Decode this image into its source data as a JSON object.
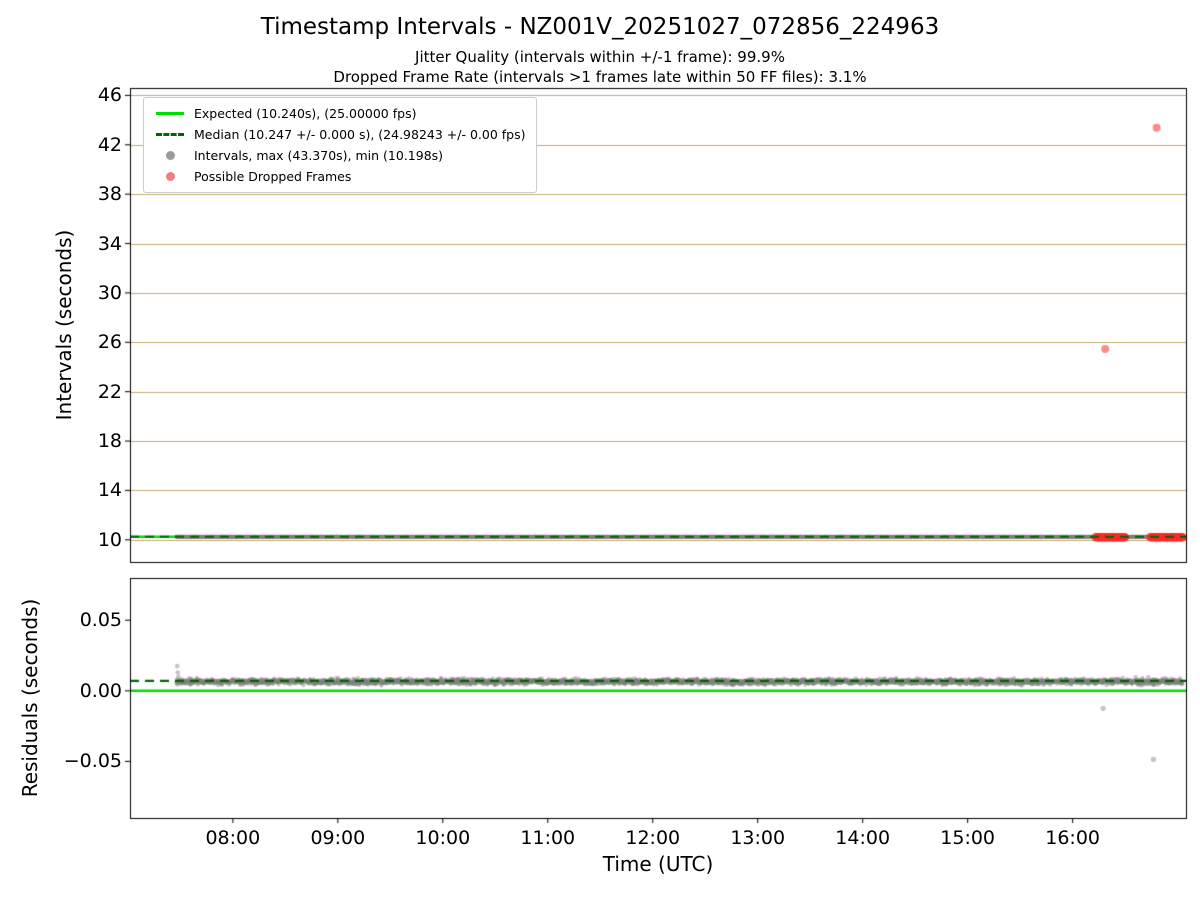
{
  "figure": {
    "title": "Timestamp Intervals - NZ001V_20251027_072856_224963",
    "subtitle_line1": "Jitter Quality (intervals within +/-1 frame): 99.9%",
    "subtitle_line2": "Dropped Frame Rate (intervals >1 frames late within 50 FF files): 3.1%",
    "xlabel": "Time (UTC)",
    "background_color": "#ffffff"
  },
  "legend": {
    "entries": [
      {
        "type": "line",
        "dash": false,
        "color": "#00dd00",
        "label": "Expected (10.240s), (25.00000 fps)"
      },
      {
        "type": "line",
        "dash": true,
        "color": "#006400",
        "label": "Median (10.247 +/- 0.000 s), (24.98243 +/- 0.00 fps)"
      },
      {
        "type": "dot",
        "color": "#9b9b9b",
        "label": "Intervals, max (43.370s), min (10.198s)"
      },
      {
        "type": "dot",
        "color": "#f08080",
        "label": "Possible Dropped Frames"
      }
    ]
  },
  "chart_data": [
    {
      "type": "scatter",
      "name": "intervals",
      "ylabel": "Intervals (seconds)",
      "xlim": [
        7.02,
        17.08
      ],
      "ylim": [
        8.2,
        46.6
      ],
      "yticks": [
        10,
        14,
        18,
        22,
        26,
        30,
        34,
        38,
        42,
        46
      ],
      "grid": {
        "axis": "y",
        "color": "#c6ac6f"
      },
      "expected_line": {
        "y": 10.24,
        "color": "#00dd00",
        "seconds": 10.24,
        "fps": 25.0
      },
      "median_line": {
        "y": 10.247,
        "color": "#006400",
        "dashed": true,
        "seconds": 10.247,
        "seconds_err": 0.0,
        "fps": 24.98243,
        "fps_err": 0.0
      },
      "stats": {
        "max_s": 43.37,
        "min_s": 10.198,
        "jitter_quality_pct": 99.9,
        "dropped_frame_rate_pct": 3.1,
        "ff_files": 50
      },
      "band": {
        "series": "intervals",
        "x_start": 7.46,
        "x_end": 17.05,
        "y_center": 10.247,
        "y_sigma": 0.02,
        "interval_s": 10.247,
        "color": "#7f7f7f",
        "alpha": 0.5,
        "radius": 1.9
      },
      "dropped_runs": [
        {
          "x_start": 16.22,
          "x_end": 16.5,
          "y": 10.21
        },
        {
          "x_start": 16.74,
          "x_end": 17.05,
          "y": 10.21
        }
      ],
      "dropped_outliers": [
        {
          "x": 16.31,
          "y": 25.45
        },
        {
          "x": 16.8,
          "y": 43.37
        }
      ],
      "dropped_style": {
        "color": "#ff2a2a",
        "alpha": 0.55,
        "radius": 4.0
      }
    },
    {
      "type": "scatter",
      "name": "residuals",
      "ylabel": "Residuals (seconds)",
      "xlim": [
        7.02,
        17.08
      ],
      "ylim": [
        -0.0901,
        0.0799
      ],
      "yticks": [
        -0.05,
        0.0,
        0.05
      ],
      "ytick_labels": [
        "−0.05",
        "0.00",
        "0.05"
      ],
      "xticks": [
        8,
        9,
        10,
        11,
        12,
        13,
        14,
        15,
        16
      ],
      "xtick_labels": [
        "08:00",
        "09:00",
        "10:00",
        "11:00",
        "12:00",
        "13:00",
        "14:00",
        "15:00",
        "16:00"
      ],
      "expected_line": {
        "y": 0.0,
        "color": "#00dd00"
      },
      "median_line": {
        "y": 0.007,
        "color": "#006400",
        "dashed": true
      },
      "band": {
        "series": "residuals",
        "x_start": 7.46,
        "x_end": 17.05,
        "y_center": 0.0065,
        "y_sigma": 0.003,
        "interval_s": 10.247,
        "color": "#7f7f7f",
        "alpha": 0.45,
        "radius": 2.0
      },
      "extra_points": [
        {
          "x": 7.47,
          "y": 0.0175
        },
        {
          "x": 7.475,
          "y": 0.013
        },
        {
          "x": 7.48,
          "y": 0.01
        },
        {
          "x": 7.47,
          "y": 0.0045
        },
        {
          "x": 7.5,
          "y": 0.005
        },
        {
          "x": 16.6,
          "y": 0.0095
        },
        {
          "x": 16.66,
          "y": 0.004
        },
        {
          "x": 16.72,
          "y": 0.0095
        },
        {
          "x": 16.78,
          "y": 0.0045
        }
      ],
      "outliers": [
        {
          "x": 16.29,
          "y": -0.0124
        },
        {
          "x": 16.77,
          "y": -0.0486
        }
      ]
    }
  ]
}
